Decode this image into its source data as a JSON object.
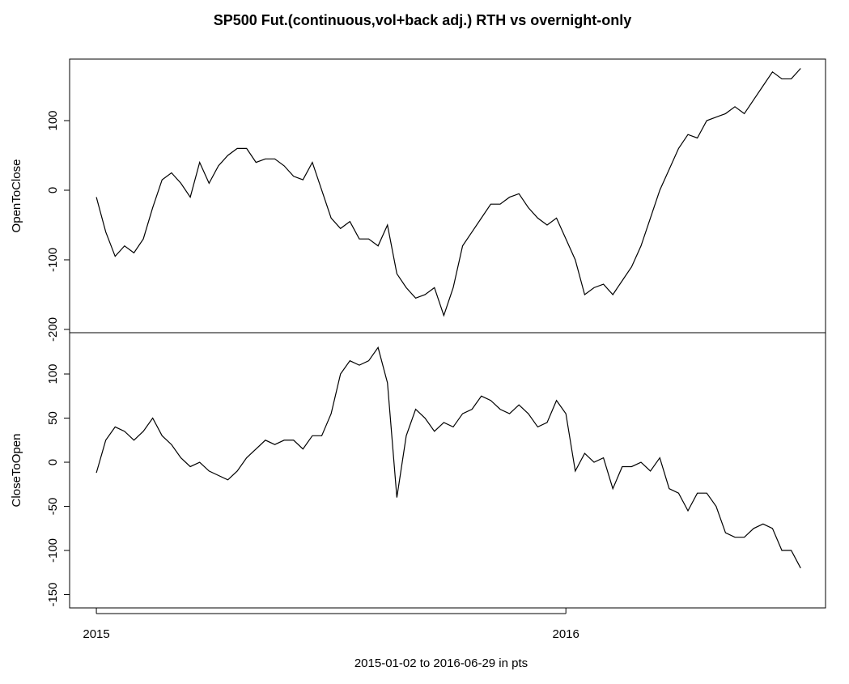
{
  "title": "SP500 Fut.(continuous,vol+back adj.) RTH vs overnight-only",
  "xlabel": "2015-01-02 to 2016-06-29   in pts",
  "chart_data": [
    {
      "type": "line",
      "ylabel": "OpenToClose",
      "color": "#000000",
      "x": [
        2015,
        2015.02,
        2015.04,
        2015.06,
        2015.08,
        2015.1,
        2015.12,
        2015.14,
        2015.16,
        2015.18,
        2015.2,
        2015.22,
        2015.24,
        2015.26,
        2015.28,
        2015.3,
        2015.32,
        2015.34,
        2015.36,
        2015.38,
        2015.4,
        2015.42,
        2015.44,
        2015.46,
        2015.48,
        2015.5,
        2015.52,
        2015.54,
        2015.56,
        2015.58,
        2015.6,
        2015.62,
        2015.64,
        2015.66,
        2015.68,
        2015.7,
        2015.72,
        2015.74,
        2015.76,
        2015.78,
        2015.8,
        2015.82,
        2015.84,
        2015.86,
        2015.88,
        2015.9,
        2015.92,
        2015.94,
        2015.96,
        2015.98,
        2016,
        2016.02,
        2016.04,
        2016.06,
        2016.08,
        2016.1,
        2016.12,
        2016.14,
        2016.16,
        2016.18,
        2016.2,
        2016.22,
        2016.24,
        2016.26,
        2016.28,
        2016.3,
        2016.32,
        2016.34,
        2016.36,
        2016.38,
        2016.4,
        2016.42,
        2016.44,
        2016.46,
        2016.48,
        2016.5
      ],
      "values": [
        -10,
        -60,
        -95,
        -80,
        -90,
        -70,
        -25,
        15,
        25,
        10,
        -10,
        40,
        10,
        35,
        50,
        60,
        60,
        40,
        45,
        45,
        35,
        20,
        15,
        40,
        0,
        -40,
        -55,
        -45,
        -70,
        -70,
        -80,
        -50,
        -120,
        -140,
        -155,
        -150,
        -140,
        -180,
        -140,
        -80,
        -60,
        -40,
        -20,
        -20,
        -10,
        -5,
        -25,
        -40,
        -50,
        -40,
        -70,
        -100,
        -150,
        -140,
        -135,
        -150,
        -130,
        -110,
        -80,
        -40,
        0,
        30,
        60,
        80,
        75,
        100,
        105,
        110,
        120,
        110,
        130,
        150,
        170,
        160,
        160,
        175
      ],
      "xlim": [
        2014.943,
        2016.553
      ],
      "ylim": [
        -204.7,
        188.4
      ],
      "yticks": [
        -200,
        -100,
        0,
        100
      ]
    },
    {
      "type": "line",
      "ylabel": "CloseToOpen",
      "color": "#000000",
      "x": [
        2015,
        2015.02,
        2015.04,
        2015.06,
        2015.08,
        2015.1,
        2015.12,
        2015.14,
        2015.16,
        2015.18,
        2015.2,
        2015.22,
        2015.24,
        2015.26,
        2015.28,
        2015.3,
        2015.32,
        2015.34,
        2015.36,
        2015.38,
        2015.4,
        2015.42,
        2015.44,
        2015.46,
        2015.48,
        2015.5,
        2015.52,
        2015.54,
        2015.56,
        2015.58,
        2015.6,
        2015.62,
        2015.64,
        2015.66,
        2015.68,
        2015.7,
        2015.72,
        2015.74,
        2015.76,
        2015.78,
        2015.8,
        2015.82,
        2015.84,
        2015.86,
        2015.88,
        2015.9,
        2015.92,
        2015.94,
        2015.96,
        2015.98,
        2016,
        2016.02,
        2016.04,
        2016.06,
        2016.08,
        2016.1,
        2016.12,
        2016.14,
        2016.16,
        2016.18,
        2016.2,
        2016.22,
        2016.24,
        2016.26,
        2016.28,
        2016.3,
        2016.32,
        2016.34,
        2016.36,
        2016.38,
        2016.4,
        2016.42,
        2016.44,
        2016.46,
        2016.48,
        2016.5
      ],
      "values": [
        -12,
        25,
        40,
        35,
        25,
        35,
        50,
        30,
        20,
        5,
        -5,
        0,
        -10,
        -15,
        -20,
        -10,
        5,
        15,
        25,
        20,
        25,
        25,
        15,
        30,
        30,
        55,
        100,
        115,
        110,
        115,
        130,
        90,
        -40,
        30,
        60,
        50,
        35,
        45,
        40,
        55,
        60,
        75,
        70,
        60,
        55,
        65,
        55,
        40,
        45,
        70,
        55,
        -10,
        10,
        0,
        5,
        -30,
        -5,
        -5,
        0,
        -10,
        5,
        -30,
        -35,
        -55,
        -35,
        -35,
        -50,
        -80,
        -85,
        -85,
        -75,
        -70,
        -75,
        -100,
        -100,
        -120
      ],
      "xlim": [
        2014.943,
        2016.553
      ],
      "ylim": [
        -165.1,
        146.8
      ],
      "yticks": [
        -150,
        -100,
        -50,
        0,
        50,
        100
      ],
      "xticks": [
        2015,
        2016
      ]
    }
  ]
}
